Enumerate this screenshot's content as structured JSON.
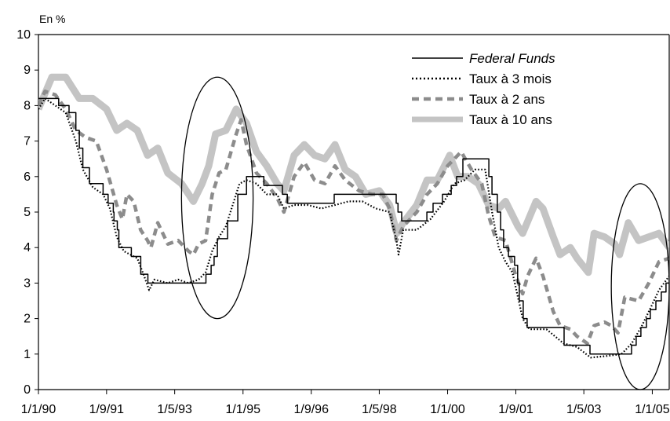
{
  "chart_data": {
    "type": "line",
    "title": "",
    "unit_label": "En %",
    "xlabel": "",
    "ylabel": "",
    "ylim": [
      0,
      10
    ],
    "y_ticks": [
      "0",
      "1",
      "2",
      "3",
      "4",
      "5",
      "6",
      "7",
      "8",
      "9",
      "10"
    ],
    "x_range": [
      "1990-01-01",
      "2005-06-01"
    ],
    "x_ticks": [
      {
        "date": "1990-01-01",
        "label": "1/1/90"
      },
      {
        "date": "1991-09-01",
        "label": "1/9/91"
      },
      {
        "date": "1993-05-01",
        "label": "1/5/93"
      },
      {
        "date": "1995-01-01",
        "label": "1/1/95"
      },
      {
        "date": "1996-09-01",
        "label": "1/9/96"
      },
      {
        "date": "1998-05-01",
        "label": "1/5/98"
      },
      {
        "date": "2000-01-01",
        "label": "1/1/00"
      },
      {
        "date": "2001-09-01",
        "label": "1/9/01"
      },
      {
        "date": "2003-05-01",
        "label": "1/5/03"
      },
      {
        "date": "2005-01-01",
        "label": "1/1/05"
      }
    ],
    "grid": false,
    "legend_position": "top-right",
    "series": [
      {
        "name": "Federal Funds",
        "style": "step",
        "color": "#000000",
        "points": [
          [
            "1990-01-01",
            8.2
          ],
          [
            "1990-07-01",
            8.0
          ],
          [
            "1990-10-01",
            7.8
          ],
          [
            "1990-12-01",
            7.3
          ],
          [
            "1991-01-01",
            6.8
          ],
          [
            "1991-02-01",
            6.25
          ],
          [
            "1991-04-01",
            5.8
          ],
          [
            "1991-08-01",
            5.5
          ],
          [
            "1991-09-15",
            5.25
          ],
          [
            "1991-10-31",
            5.0
          ],
          [
            "1991-11-06",
            4.75
          ],
          [
            "1991-12-06",
            4.5
          ],
          [
            "1991-12-20",
            4.0
          ],
          [
            "1992-04-09",
            3.75
          ],
          [
            "1992-07-02",
            3.25
          ],
          [
            "1992-09-04",
            3.0
          ],
          [
            "1994-02-04",
            3.25
          ],
          [
            "1994-03-22",
            3.5
          ],
          [
            "1994-04-18",
            3.75
          ],
          [
            "1994-05-17",
            4.25
          ],
          [
            "1994-08-16",
            4.75
          ],
          [
            "1994-11-15",
            5.5
          ],
          [
            "1995-02-01",
            6.0
          ],
          [
            "1995-07-06",
            5.75
          ],
          [
            "1995-12-19",
            5.5
          ],
          [
            "1996-01-31",
            5.25
          ],
          [
            "1997-03-25",
            5.5
          ],
          [
            "1998-09-29",
            5.25
          ],
          [
            "1998-10-15",
            5.0
          ],
          [
            "1998-11-17",
            4.75
          ],
          [
            "1999-06-30",
            5.0
          ],
          [
            "1999-08-24",
            5.25
          ],
          [
            "1999-11-16",
            5.5
          ],
          [
            "2000-02-02",
            5.75
          ],
          [
            "2000-03-21",
            6.0
          ],
          [
            "2000-05-16",
            6.5
          ],
          [
            "2001-01-03",
            6.0
          ],
          [
            "2001-01-31",
            5.5
          ],
          [
            "2001-03-20",
            5.0
          ],
          [
            "2001-04-18",
            4.5
          ],
          [
            "2001-05-15",
            4.0
          ],
          [
            "2001-06-27",
            3.75
          ],
          [
            "2001-08-21",
            3.5
          ],
          [
            "2001-09-17",
            3.0
          ],
          [
            "2001-10-02",
            2.5
          ],
          [
            "2001-11-06",
            2.0
          ],
          [
            "2001-12-11",
            1.75
          ],
          [
            "2002-11-06",
            1.25
          ],
          [
            "2003-06-25",
            1.0
          ],
          [
            "2004-06-30",
            1.25
          ],
          [
            "2004-08-10",
            1.5
          ],
          [
            "2004-09-21",
            1.75
          ],
          [
            "2004-11-10",
            2.0
          ],
          [
            "2004-12-14",
            2.25
          ],
          [
            "2005-02-02",
            2.5
          ],
          [
            "2005-03-22",
            2.75
          ],
          [
            "2005-05-03",
            3.0
          ],
          [
            "2005-06-01",
            3.0
          ]
        ]
      },
      {
        "name": "Taux à 3 mois",
        "style": "dotted",
        "color": "#000000",
        "points": [
          [
            "1990-01-01",
            7.9
          ],
          [
            "1990-03-01",
            8.2
          ],
          [
            "1990-06-01",
            8.0
          ],
          [
            "1990-09-01",
            7.8
          ],
          [
            "1990-12-01",
            7.0
          ],
          [
            "1991-02-01",
            6.2
          ],
          [
            "1991-05-01",
            5.7
          ],
          [
            "1991-08-01",
            5.5
          ],
          [
            "1991-10-01",
            5.1
          ],
          [
            "1991-12-01",
            4.3
          ],
          [
            "1992-02-01",
            3.9
          ],
          [
            "1992-04-01",
            3.8
          ],
          [
            "1992-06-01",
            3.7
          ],
          [
            "1992-08-01",
            3.2
          ],
          [
            "1992-09-15",
            2.8
          ],
          [
            "1992-11-01",
            3.1
          ],
          [
            "1993-03-01",
            3.0
          ],
          [
            "1993-06-01",
            3.1
          ],
          [
            "1993-09-01",
            3.0
          ],
          [
            "1993-12-01",
            3.1
          ],
          [
            "1994-02-01",
            3.3
          ],
          [
            "1994-04-01",
            3.9
          ],
          [
            "1994-06-01",
            4.3
          ],
          [
            "1994-08-01",
            4.6
          ],
          [
            "1994-10-01",
            5.2
          ],
          [
            "1994-12-01",
            5.8
          ],
          [
            "1995-02-01",
            5.9
          ],
          [
            "1995-05-01",
            5.8
          ],
          [
            "1995-08-01",
            5.5
          ],
          [
            "1995-11-01",
            5.5
          ],
          [
            "1996-01-01",
            5.1
          ],
          [
            "1996-04-01",
            5.2
          ],
          [
            "1996-08-01",
            5.2
          ],
          [
            "1996-12-01",
            5.1
          ],
          [
            "1997-04-01",
            5.2
          ],
          [
            "1997-08-01",
            5.3
          ],
          [
            "1997-12-01",
            5.3
          ],
          [
            "1998-04-01",
            5.1
          ],
          [
            "1998-08-01",
            5.0
          ],
          [
            "1998-10-01",
            4.2
          ],
          [
            "1998-10-20",
            3.8
          ],
          [
            "1998-12-01",
            4.5
          ],
          [
            "1999-04-01",
            4.5
          ],
          [
            "1999-08-01",
            4.8
          ],
          [
            "1999-12-01",
            5.3
          ],
          [
            "2000-03-01",
            5.8
          ],
          [
            "2000-06-01",
            5.9
          ],
          [
            "2000-09-01",
            6.2
          ],
          [
            "2000-12-01",
            6.2
          ],
          [
            "2001-02-01",
            5.0
          ],
          [
            "2001-04-01",
            4.0
          ],
          [
            "2001-06-01",
            3.6
          ],
          [
            "2001-08-01",
            3.3
          ],
          [
            "2001-09-20",
            2.6
          ],
          [
            "2001-11-01",
            2.0
          ],
          [
            "2002-01-01",
            1.7
          ],
          [
            "2002-06-01",
            1.7
          ],
          [
            "2002-11-01",
            1.3
          ],
          [
            "2003-03-01",
            1.2
          ],
          [
            "2003-07-01",
            0.9
          ],
          [
            "2003-12-01",
            0.95
          ],
          [
            "2004-04-01",
            1.0
          ],
          [
            "2004-07-01",
            1.3
          ],
          [
            "2004-10-01",
            1.8
          ],
          [
            "2005-01-01",
            2.4
          ],
          [
            "2005-03-01",
            2.8
          ],
          [
            "2005-06-01",
            3.2
          ]
        ]
      },
      {
        "name": "Taux à 2 ans",
        "style": "dashed",
        "color": "#8c8c8c",
        "points": [
          [
            "1990-01-01",
            8.0
          ],
          [
            "1990-03-01",
            8.4
          ],
          [
            "1990-06-01",
            8.3
          ],
          [
            "1990-09-01",
            7.9
          ],
          [
            "1990-12-01",
            7.3
          ],
          [
            "1991-03-01",
            7.1
          ],
          [
            "1991-06-01",
            7.0
          ],
          [
            "1991-09-01",
            6.2
          ],
          [
            "1991-12-01",
            5.2
          ],
          [
            "1992-01-20",
            4.8
          ],
          [
            "1992-03-01",
            5.5
          ],
          [
            "1992-05-01",
            5.3
          ],
          [
            "1992-07-01",
            4.5
          ],
          [
            "1992-09-01",
            4.2
          ],
          [
            "1992-10-01",
            4.0
          ],
          [
            "1992-12-01",
            4.7
          ],
          [
            "1993-03-01",
            4.1
          ],
          [
            "1993-06-01",
            4.2
          ],
          [
            "1993-09-01",
            3.9
          ],
          [
            "1993-10-15",
            3.8
          ],
          [
            "1993-12-01",
            4.1
          ],
          [
            "1994-02-01",
            4.2
          ],
          [
            "1994-04-01",
            5.5
          ],
          [
            "1994-06-01",
            6.1
          ],
          [
            "1994-08-01",
            6.2
          ],
          [
            "1994-11-01",
            7.2
          ],
          [
            "1994-12-15",
            7.6
          ],
          [
            "1995-02-01",
            6.9
          ],
          [
            "1995-05-01",
            6.1
          ],
          [
            "1995-08-01",
            5.8
          ],
          [
            "1995-11-01",
            5.4
          ],
          [
            "1996-01-01",
            5.0
          ],
          [
            "1996-04-01",
            6.0
          ],
          [
            "1996-07-01",
            6.4
          ],
          [
            "1996-10-01",
            5.9
          ],
          [
            "1997-01-01",
            5.8
          ],
          [
            "1997-04-01",
            6.3
          ],
          [
            "1997-07-01",
            5.9
          ],
          [
            "1997-11-01",
            5.6
          ],
          [
            "1998-03-01",
            5.5
          ],
          [
            "1998-06-01",
            5.5
          ],
          [
            "1998-08-01",
            5.1
          ],
          [
            "1998-10-01",
            4.2
          ],
          [
            "1998-12-01",
            4.6
          ],
          [
            "1999-04-01",
            5.0
          ],
          [
            "1999-07-01",
            5.5
          ],
          [
            "1999-10-01",
            5.8
          ],
          [
            "2000-01-01",
            6.3
          ],
          [
            "2000-05-01",
            6.7
          ],
          [
            "2000-08-01",
            6.2
          ],
          [
            "2000-11-01",
            5.8
          ],
          [
            "2001-01-01",
            4.9
          ],
          [
            "2001-03-01",
            4.3
          ],
          [
            "2001-06-01",
            4.2
          ],
          [
            "2001-09-01",
            3.2
          ],
          [
            "2001-11-01",
            2.7
          ],
          [
            "2001-12-15",
            3.2
          ],
          [
            "2002-03-01",
            3.7
          ],
          [
            "2002-05-01",
            3.2
          ],
          [
            "2002-08-01",
            2.2
          ],
          [
            "2002-10-01",
            1.8
          ],
          [
            "2003-01-01",
            1.7
          ],
          [
            "2003-03-01",
            1.5
          ],
          [
            "2003-06-01",
            1.3
          ],
          [
            "2003-08-01",
            1.8
          ],
          [
            "2003-11-01",
            1.9
          ],
          [
            "2004-01-01",
            1.8
          ],
          [
            "2004-03-01",
            1.6
          ],
          [
            "2004-05-01",
            2.6
          ],
          [
            "2004-09-01",
            2.5
          ],
          [
            "2004-12-01",
            3.0
          ],
          [
            "2005-03-01",
            3.6
          ],
          [
            "2005-06-01",
            3.7
          ]
        ]
      },
      {
        "name": "Taux à 10 ans",
        "style": "solid-thick",
        "color": "#c4c4c4",
        "points": [
          [
            "1990-01-01",
            7.9
          ],
          [
            "1990-05-01",
            8.8
          ],
          [
            "1990-09-01",
            8.8
          ],
          [
            "1991-01-01",
            8.2
          ],
          [
            "1991-05-01",
            8.2
          ],
          [
            "1991-09-01",
            7.9
          ],
          [
            "1991-12-01",
            7.3
          ],
          [
            "1992-03-01",
            7.5
          ],
          [
            "1992-06-01",
            7.3
          ],
          [
            "1992-09-01",
            6.6
          ],
          [
            "1992-12-01",
            6.8
          ],
          [
            "1993-03-01",
            6.1
          ],
          [
            "1993-07-01",
            5.8
          ],
          [
            "1993-10-15",
            5.3
          ],
          [
            "1994-01-01",
            5.8
          ],
          [
            "1994-03-01",
            6.3
          ],
          [
            "1994-05-01",
            7.2
          ],
          [
            "1994-08-01",
            7.3
          ],
          [
            "1994-11-01",
            7.9
          ],
          [
            "1995-02-01",
            7.5
          ],
          [
            "1995-05-01",
            6.7
          ],
          [
            "1995-08-01",
            6.3
          ],
          [
            "1995-11-01",
            5.8
          ],
          [
            "1996-01-01",
            5.6
          ],
          [
            "1996-04-01",
            6.6
          ],
          [
            "1996-07-01",
            6.9
          ],
          [
            "1996-10-01",
            6.6
          ],
          [
            "1997-01-01",
            6.5
          ],
          [
            "1997-04-01",
            6.9
          ],
          [
            "1997-07-01",
            6.2
          ],
          [
            "1997-10-01",
            6.0
          ],
          [
            "1998-01-01",
            5.5
          ],
          [
            "1998-05-01",
            5.6
          ],
          [
            "1998-08-01",
            5.2
          ],
          [
            "1998-10-05",
            4.4
          ],
          [
            "1998-12-01",
            4.7
          ],
          [
            "1999-04-01",
            5.2
          ],
          [
            "1999-07-01",
            5.9
          ],
          [
            "1999-10-01",
            5.9
          ],
          [
            "2000-01-20",
            6.6
          ],
          [
            "2000-04-01",
            6.0
          ],
          [
            "2000-07-01",
            6.0
          ],
          [
            "2000-10-01",
            5.8
          ],
          [
            "2001-01-01",
            5.2
          ],
          [
            "2001-04-01",
            5.1
          ],
          [
            "2001-06-01",
            5.3
          ],
          [
            "2001-09-20",
            4.6
          ],
          [
            "2001-11-01",
            4.4
          ],
          [
            "2002-03-01",
            5.3
          ],
          [
            "2002-05-01",
            5.1
          ],
          [
            "2002-08-01",
            4.3
          ],
          [
            "2002-10-01",
            3.8
          ],
          [
            "2003-01-01",
            4.0
          ],
          [
            "2003-03-01",
            3.7
          ],
          [
            "2003-06-10",
            3.3
          ],
          [
            "2003-08-01",
            4.4
          ],
          [
            "2003-11-01",
            4.3
          ],
          [
            "2004-02-01",
            4.1
          ],
          [
            "2004-03-15",
            3.8
          ],
          [
            "2004-06-01",
            4.7
          ],
          [
            "2004-09-01",
            4.2
          ],
          [
            "2004-12-01",
            4.3
          ],
          [
            "2005-03-01",
            4.4
          ],
          [
            "2005-06-01",
            4.0
          ]
        ]
      }
    ],
    "annotations": [
      {
        "type": "ellipse",
        "note": "highlight",
        "x_from": "1993-07-01",
        "x_to": "1995-04-01",
        "y_from": 2.0,
        "y_to": 8.8
      },
      {
        "type": "ellipse",
        "note": "highlight",
        "x_from": "2004-01-01",
        "x_to": "2005-06-01",
        "y_from": 0.0,
        "y_to": 5.8
      }
    ]
  }
}
